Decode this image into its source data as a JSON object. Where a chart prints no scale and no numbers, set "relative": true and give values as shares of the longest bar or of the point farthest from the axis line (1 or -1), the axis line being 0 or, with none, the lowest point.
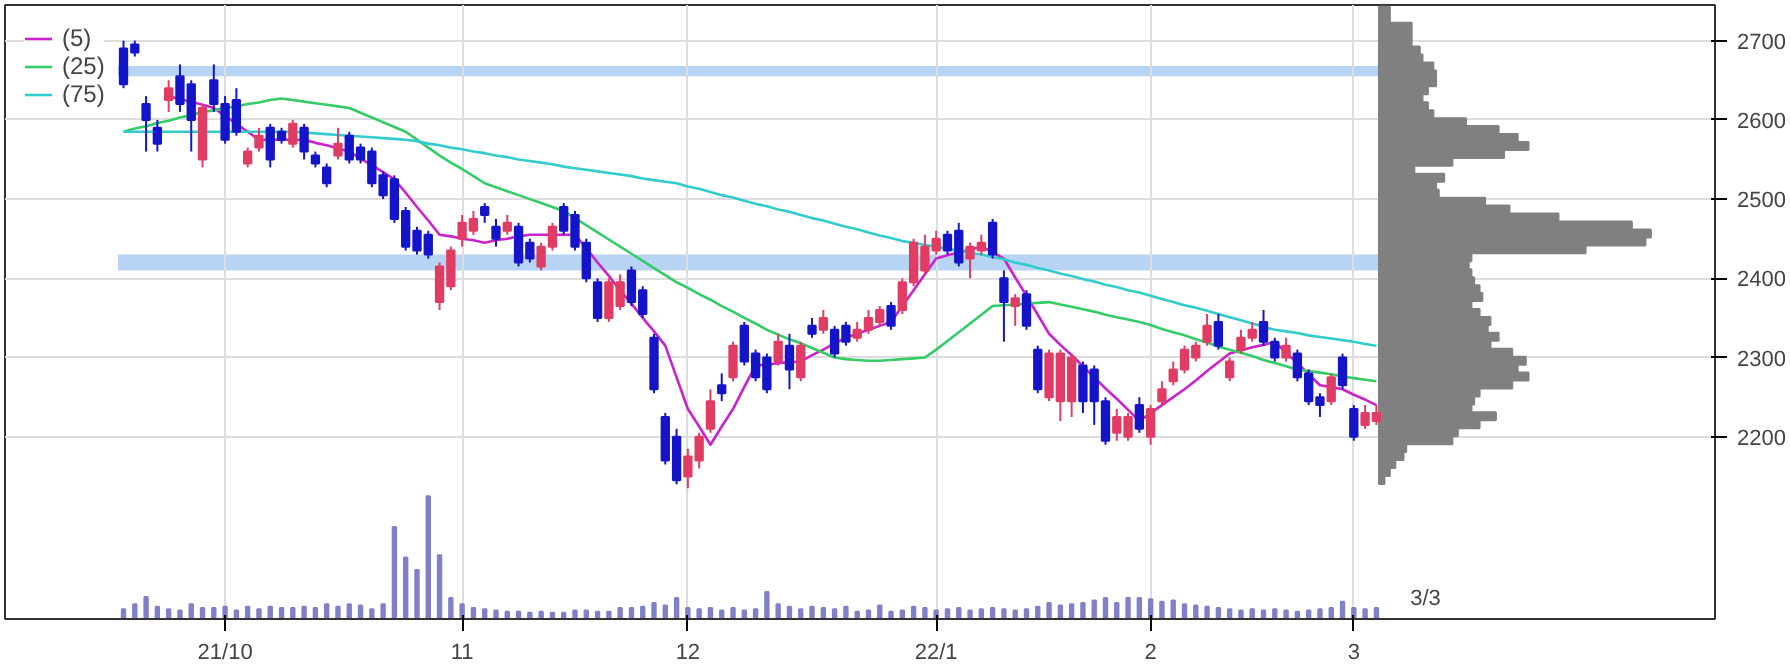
{
  "chart_data": [
    {
      "type": "candlestick",
      "categories": [
        null,
        null,
        null,
        null,
        null,
        null,
        null,
        null,
        null,
        "21/10",
        null,
        null,
        null,
        null,
        null,
        null,
        null,
        null,
        null,
        null,
        null,
        null,
        null,
        null,
        null,
        null,
        null,
        null,
        null,
        null,
        "11",
        null,
        null,
        null,
        null,
        null,
        null,
        null,
        null,
        null,
        null,
        null,
        null,
        null,
        null,
        null,
        null,
        null,
        null,
        null,
        "12",
        null,
        null,
        null,
        null,
        null,
        null,
        null,
        null,
        null,
        null,
        null,
        null,
        null,
        null,
        null,
        null,
        null,
        null,
        null,
        null,
        null,
        "22/1",
        null,
        null,
        null,
        null,
        null,
        null,
        null,
        null,
        null,
        null,
        null,
        null,
        null,
        null,
        null,
        null,
        null,
        null,
        "2",
        null,
        null,
        null,
        null,
        null,
        null,
        null,
        null,
        null,
        null,
        null,
        null,
        null,
        null,
        null,
        null,
        null,
        "3",
        null,
        null
      ],
      "ohlc": [
        [
          2690,
          2700,
          2640,
          2645
        ],
        [
          2695,
          2700,
          2680,
          2685
        ],
        [
          2620,
          2630,
          2560,
          2600
        ],
        [
          2590,
          2600,
          2560,
          2570
        ],
        [
          2625,
          2650,
          2610,
          2640
        ],
        [
          2655,
          2670,
          2610,
          2620
        ],
        [
          2645,
          2650,
          2560,
          2600
        ],
        [
          2550,
          2620,
          2540,
          2615
        ],
        [
          2650,
          2670,
          2610,
          2620
        ],
        [
          2620,
          2630,
          2570,
          2575
        ],
        [
          2625,
          2640,
          2580,
          2585
        ],
        [
          2545,
          2565,
          2540,
          2560
        ],
        [
          2565,
          2590,
          2560,
          2580
        ],
        [
          2590,
          2595,
          2540,
          2550
        ],
        [
          2585,
          2590,
          2570,
          2575
        ],
        [
          2570,
          2600,
          2565,
          2595
        ],
        [
          2590,
          2595,
          2550,
          2560
        ],
        [
          2555,
          2560,
          2540,
          2545
        ],
        [
          2540,
          2545,
          2515,
          2520
        ],
        [
          2555,
          2590,
          2550,
          2570
        ],
        [
          2580,
          2585,
          2545,
          2550
        ],
        [
          2565,
          2570,
          2545,
          2550
        ],
        [
          2560,
          2565,
          2515,
          2520
        ],
        [
          2530,
          2535,
          2500,
          2505
        ],
        [
          2525,
          2530,
          2470,
          2475
        ],
        [
          2485,
          2490,
          2435,
          2440
        ],
        [
          2460,
          2465,
          2430,
          2435
        ],
        [
          2455,
          2460,
          2425,
          2430
        ],
        [
          2370,
          2420,
          2360,
          2415
        ],
        [
          2390,
          2440,
          2385,
          2435
        ],
        [
          2450,
          2480,
          2440,
          2470
        ],
        [
          2460,
          2485,
          2455,
          2475
        ],
        [
          2490,
          2495,
          2470,
          2480
        ],
        [
          2465,
          2475,
          2440,
          2450
        ],
        [
          2460,
          2480,
          2455,
          2470
        ],
        [
          2465,
          2470,
          2415,
          2420
        ],
        [
          2445,
          2450,
          2420,
          2425
        ],
        [
          2415,
          2445,
          2410,
          2440
        ],
        [
          2440,
          2470,
          2435,
          2465
        ],
        [
          2490,
          2495,
          2455,
          2460
        ],
        [
          2480,
          2485,
          2435,
          2440
        ],
        [
          2445,
          2450,
          2395,
          2400
        ],
        [
          2395,
          2400,
          2345,
          2350
        ],
        [
          2350,
          2400,
          2345,
          2395
        ],
        [
          2365,
          2405,
          2360,
          2395
        ],
        [
          2410,
          2415,
          2365,
          2370
        ],
        [
          2385,
          2390,
          2350,
          2355
        ],
        [
          2325,
          2330,
          2255,
          2260
        ],
        [
          2225,
          2230,
          2165,
          2170
        ],
        [
          2200,
          2210,
          2140,
          2145
        ],
        [
          2150,
          2185,
          2135,
          2175
        ],
        [
          2170,
          2205,
          2160,
          2200
        ],
        [
          2210,
          2260,
          2205,
          2245
        ],
        [
          2265,
          2280,
          2245,
          2255
        ],
        [
          2275,
          2320,
          2270,
          2315
        ],
        [
          2340,
          2345,
          2290,
          2295
        ],
        [
          2305,
          2310,
          2270,
          2275
        ],
        [
          2300,
          2305,
          2255,
          2260
        ],
        [
          2295,
          2330,
          2290,
          2320
        ],
        [
          2315,
          2330,
          2260,
          2285
        ],
        [
          2275,
          2320,
          2270,
          2315
        ],
        [
          2340,
          2350,
          2325,
          2330
        ],
        [
          2335,
          2360,
          2330,
          2350
        ],
        [
          2335,
          2340,
          2300,
          2305
        ],
        [
          2340,
          2345,
          2315,
          2320
        ],
        [
          2325,
          2345,
          2320,
          2335
        ],
        [
          2335,
          2360,
          2330,
          2350
        ],
        [
          2345,
          2365,
          2340,
          2360
        ],
        [
          2365,
          2370,
          2335,
          2340
        ],
        [
          2360,
          2400,
          2355,
          2395
        ],
        [
          2395,
          2450,
          2390,
          2445
        ],
        [
          2410,
          2455,
          2405,
          2440
        ],
        [
          2435,
          2460,
          2430,
          2450
        ],
        [
          2455,
          2460,
          2430,
          2435
        ],
        [
          2460,
          2470,
          2415,
          2420
        ],
        [
          2425,
          2445,
          2400,
          2440
        ],
        [
          2435,
          2455,
          2430,
          2445
        ],
        [
          2470,
          2475,
          2425,
          2430
        ],
        [
          2400,
          2410,
          2320,
          2370
        ],
        [
          2365,
          2380,
          2340,
          2375
        ],
        [
          2380,
          2385,
          2335,
          2340
        ],
        [
          2310,
          2315,
          2255,
          2260
        ],
        [
          2250,
          2310,
          2245,
          2305
        ],
        [
          2245,
          2310,
          2220,
          2305
        ],
        [
          2245,
          2305,
          2225,
          2300
        ],
        [
          2290,
          2295,
          2230,
          2245
        ],
        [
          2285,
          2290,
          2215,
          2245
        ],
        [
          2245,
          2250,
          2190,
          2195
        ],
        [
          2205,
          2235,
          2195,
          2225
        ],
        [
          2200,
          2230,
          2195,
          2225
        ],
        [
          2240,
          2250,
          2205,
          2210
        ],
        [
          2200,
          2240,
          2190,
          2235
        ],
        [
          2245,
          2270,
          2240,
          2260
        ],
        [
          2270,
          2295,
          2265,
          2285
        ],
        [
          2285,
          2315,
          2280,
          2310
        ],
        [
          2300,
          2320,
          2295,
          2315
        ],
        [
          2320,
          2355,
          2315,
          2340
        ],
        [
          2345,
          2355,
          2310,
          2315
        ],
        [
          2275,
          2300,
          2270,
          2295
        ],
        [
          2310,
          2335,
          2305,
          2325
        ],
        [
          2325,
          2345,
          2320,
          2335
        ],
        [
          2345,
          2360,
          2315,
          2320
        ],
        [
          2320,
          2325,
          2295,
          2300
        ],
        [
          2300,
          2325,
          2295,
          2315
        ],
        [
          2305,
          2310,
          2270,
          2275
        ],
        [
          2280,
          2285,
          2240,
          2245
        ],
        [
          2250,
          2255,
          2225,
          2240
        ],
        [
          2245,
          2280,
          2240,
          2275
        ],
        [
          2300,
          2305,
          2260,
          2265
        ],
        [
          2235,
          2240,
          2195,
          2200
        ],
        [
          2215,
          2240,
          2210,
          2230
        ],
        [
          2220,
          2240,
          2215,
          2230
        ]
      ],
      "colors": [
        "#1414c8",
        "#1414c8",
        "#1414c8",
        "#1414c8",
        "#e03c64",
        "#1414c8",
        "#1414c8",
        "#e03c64",
        "#1414c8",
        "#1414c8",
        "#1414c8",
        "#e03c64",
        "#e03c64",
        "#1414c8",
        "#1414c8",
        "#e03c64",
        "#1414c8",
        "#1414c8",
        "#1414c8",
        "#e03c64",
        "#1414c8",
        "#1414c8",
        "#1414c8",
        "#1414c8",
        "#1414c8",
        "#1414c8",
        "#1414c8",
        "#1414c8",
        "#e03c64",
        "#e03c64",
        "#e03c64",
        "#e03c64",
        "#1414c8",
        "#1414c8",
        "#e03c64",
        "#1414c8",
        "#1414c8",
        "#e03c64",
        "#e03c64",
        "#1414c8",
        "#1414c8",
        "#1414c8",
        "#1414c8",
        "#e03c64",
        "#e03c64",
        "#1414c8",
        "#1414c8",
        "#1414c8",
        "#1414c8",
        "#1414c8",
        "#e03c64",
        "#e03c64",
        "#e03c64",
        "#1414c8",
        "#e03c64",
        "#1414c8",
        "#1414c8",
        "#1414c8",
        "#e03c64",
        "#1414c8",
        "#e03c64",
        "#1414c8",
        "#e03c64",
        "#1414c8",
        "#1414c8",
        "#e03c64",
        "#e03c64",
        "#e03c64",
        "#1414c8",
        "#e03c64",
        "#e03c64",
        "#e03c64",
        "#e03c64",
        "#1414c8",
        "#1414c8",
        "#e03c64",
        "#e03c64",
        "#1414c8",
        "#1414c8",
        "#e03c64",
        "#1414c8",
        "#1414c8",
        "#e03c64",
        "#e03c64",
        "#e03c64",
        "#1414c8",
        "#1414c8",
        "#1414c8",
        "#e03c64",
        "#e03c64",
        "#1414c8",
        "#e03c64",
        "#e03c64",
        "#e03c64",
        "#e03c64",
        "#e03c64",
        "#e03c64",
        "#1414c8",
        "#e03c64",
        "#e03c64",
        "#e03c64",
        "#1414c8",
        "#1414c8",
        "#e03c64",
        "#1414c8",
        "#1414c8",
        "#1414c8",
        "#e03c64",
        "#1414c8",
        "#1414c8",
        "#e03c64",
        "#e03c64"
      ],
      "series": [
        {
          "type": "line",
          "name": "(5)",
          "color": "#cc22cc",
          "values": [
            null,
            null,
            null,
            null,
            2630,
            2626,
            2623,
            2619,
            2615,
            2605,
            2595,
            2585,
            2575,
            2575,
            2575,
            2575,
            2575,
            2571,
            2568,
            2564,
            2560,
            2551,
            2543,
            2534,
            2525,
            2508,
            2490,
            2473,
            2455,
            2453,
            2450,
            2448,
            2445,
            2448,
            2450,
            2453,
            2455,
            2455,
            2455,
            2455,
            2455,
            2438,
            2420,
            2403,
            2385,
            2368,
            2350,
            2333,
            2315,
            2275,
            2235,
            2213,
            2190,
            2213,
            2235,
            2263,
            2290,
            2291,
            2293,
            2294,
            2295,
            2303,
            2310,
            2318,
            2325,
            2330,
            2335,
            2340,
            2345,
            2365,
            2385,
            2405,
            2425,
            2429,
            2433,
            2436,
            2440,
            2433,
            2425,
            2401,
            2378,
            2354,
            2330,
            2316,
            2303,
            2289,
            2275,
            2261,
            2248,
            2234,
            2220,
            2230,
            2240,
            2250,
            2260,
            2271,
            2283,
            2294,
            2305,
            2309,
            2313,
            2316,
            2320,
            2306,
            2293,
            2279,
            2265,
            2263,
            2260,
            2253,
            2247,
            2240
          ]
        },
        {
          "type": "line",
          "name": "(25)",
          "color": "#33cc66",
          "values": [
            2585,
            2589,
            2592,
            2596,
            2599,
            2603,
            2606,
            2610,
            2612,
            2615,
            2617,
            2620,
            2622,
            2625,
            2627,
            2625,
            2623,
            2621,
            2619,
            2617,
            2615,
            2609,
            2603,
            2597,
            2591,
            2585,
            2575,
            2565,
            2555,
            2546,
            2538,
            2529,
            2520,
            2515,
            2510,
            2505,
            2500,
            2495,
            2490,
            2485,
            2476,
            2467,
            2458,
            2449,
            2440,
            2431,
            2422,
            2413,
            2404,
            2395,
            2388,
            2380,
            2373,
            2365,
            2358,
            2350,
            2343,
            2335,
            2329,
            2323,
            2318,
            2312,
            2306,
            2300,
            2298,
            2297,
            2296,
            2296,
            2297,
            2298,
            2299,
            2300,
            2310,
            2321,
            2332,
            2343,
            2354,
            2365,
            2366,
            2367,
            2368,
            2369,
            2370,
            2367,
            2364,
            2361,
            2358,
            2354,
            2351,
            2348,
            2345,
            2341,
            2336,
            2332,
            2328,
            2323,
            2319,
            2314,
            2310,
            2306,
            2302,
            2297,
            2293,
            2289,
            2285,
            2283,
            2281,
            2279,
            2276,
            2274,
            2272,
            2270
          ]
        },
        {
          "type": "line",
          "name": "(75)",
          "color": "#33cccc",
          "values": [
            2585,
            2585,
            2585,
            2585,
            2585,
            2585,
            2585,
            2585,
            2585,
            2585,
            2585,
            2585,
            2585,
            2585,
            2585,
            2585,
            2584,
            2583,
            2582,
            2581,
            2580,
            2579,
            2578,
            2577,
            2576,
            2575,
            2573,
            2570,
            2568,
            2565,
            2563,
            2560,
            2558,
            2555,
            2553,
            2550,
            2548,
            2546,
            2544,
            2541,
            2539,
            2537,
            2535,
            2533,
            2531,
            2529,
            2526,
            2524,
            2522,
            2520,
            2516,
            2513,
            2509,
            2505,
            2502,
            2498,
            2494,
            2491,
            2487,
            2484,
            2480,
            2476,
            2473,
            2469,
            2465,
            2462,
            2458,
            2454,
            2451,
            2447,
            2445,
            2442,
            2440,
            2437,
            2435,
            2432,
            2430,
            2427,
            2424,
            2420,
            2417,
            2413,
            2410,
            2406,
            2403,
            2399,
            2396,
            2392,
            2389,
            2385,
            2382,
            2378,
            2374,
            2370,
            2366,
            2363,
            2359,
            2355,
            2351,
            2347,
            2343,
            2339,
            2335,
            2333,
            2331,
            2328,
            2326,
            2324,
            2322,
            2320,
            2317,
            2315
          ]
        }
      ],
      "bands": [
        {
          "axis": "y",
          "from": 2655,
          "to": 2668,
          "color": "#b8d4f4"
        },
        {
          "axis": "y",
          "from": 2410,
          "to": 2430,
          "color": "#b8d4f4"
        }
      ],
      "ylim": [
        1970,
        2745
      ],
      "yticks": [
        2200,
        2300,
        2400,
        2500,
        2600,
        2700
      ],
      "grid": true,
      "legend": "top left",
      "annotations": [
        "3/3"
      ]
    },
    {
      "type": "bar",
      "relative": true,
      "color": "#8080c8",
      "categories": [
        null,
        null,
        null,
        null,
        null,
        null,
        null,
        null,
        null,
        null,
        null,
        null,
        null,
        null,
        null,
        null,
        null,
        null,
        null,
        null,
        null,
        null,
        null,
        null,
        null,
        null,
        null,
        null,
        null,
        null,
        null,
        null,
        null,
        null,
        null,
        null,
        null,
        null,
        null,
        null,
        null,
        null,
        null,
        null,
        null,
        null,
        null,
        null,
        null,
        null,
        null,
        null,
        null,
        null,
        null,
        null,
        null,
        null,
        null,
        null,
        null,
        null,
        null,
        null,
        null,
        null,
        null,
        null,
        null,
        null,
        null,
        null,
        null,
        null,
        null,
        null,
        null,
        null,
        null,
        null,
        null,
        null,
        null,
        null,
        null,
        null,
        null,
        null,
        null,
        null,
        null,
        null,
        null,
        null,
        null,
        null,
        null,
        null,
        null,
        null,
        null,
        null,
        null,
        null,
        null,
        null,
        null,
        null,
        null,
        null,
        null,
        null
      ],
      "values": [
        0.08,
        0.12,
        0.18,
        0.1,
        0.08,
        0.07,
        0.12,
        0.09,
        0.09,
        0.1,
        0.07,
        0.1,
        0.08,
        0.1,
        0.09,
        0.09,
        0.1,
        0.09,
        0.12,
        0.1,
        0.12,
        0.11,
        0.08,
        0.12,
        0.75,
        0.5,
        0.4,
        1.0,
        0.52,
        0.17,
        0.12,
        0.09,
        0.08,
        0.07,
        0.06,
        0.06,
        0.05,
        0.06,
        0.05,
        0.05,
        0.07,
        0.07,
        0.06,
        0.06,
        0.09,
        0.09,
        0.1,
        0.13,
        0.11,
        0.17,
        0.09,
        0.08,
        0.09,
        0.07,
        0.09,
        0.07,
        0.08,
        0.22,
        0.12,
        0.1,
        0.08,
        0.1,
        0.09,
        0.08,
        0.1,
        0.06,
        0.07,
        0.11,
        0.06,
        0.07,
        0.1,
        0.09,
        0.07,
        0.08,
        0.09,
        0.07,
        0.08,
        0.09,
        0.08,
        0.07,
        0.08,
        0.1,
        0.13,
        0.11,
        0.12,
        0.13,
        0.15,
        0.17,
        0.13,
        0.17,
        0.17,
        0.16,
        0.14,
        0.15,
        0.12,
        0.11,
        0.1,
        0.09,
        0.08,
        0.07,
        0.08,
        0.07,
        0.08,
        0.07,
        0.06,
        0.07,
        0.08,
        0.09,
        0.14,
        0.09,
        0.08,
        0.09
      ]
    },
    {
      "type": "bar",
      "orientation": "horizontal",
      "relative": true,
      "color": "#808080",
      "categories": [
        null,
        null,
        null,
        null,
        null,
        null,
        null,
        null,
        null,
        null,
        null,
        null,
        null,
        null,
        null,
        null,
        null,
        null,
        null,
        null,
        null,
        null,
        null,
        null,
        null,
        null,
        null,
        null,
        null,
        null,
        null,
        null,
        null,
        null,
        null,
        null,
        null,
        null,
        null,
        null,
        null,
        null,
        null,
        null,
        null,
        null,
        null,
        null,
        null,
        null,
        null,
        null,
        null,
        null,
        null,
        null,
        null,
        null,
        null,
        null
      ],
      "values": [
        0.04,
        0.04,
        0.12,
        0.12,
        0.12,
        0.15,
        0.16,
        0.2,
        0.21,
        0.21,
        0.18,
        0.16,
        0.18,
        0.2,
        0.32,
        0.44,
        0.51,
        0.55,
        0.46,
        0.27,
        0.13,
        0.24,
        0.21,
        0.22,
        0.39,
        0.48,
        0.66,
        0.93,
        1.0,
        0.98,
        0.76,
        0.34,
        0.33,
        0.34,
        0.35,
        0.37,
        0.38,
        0.34,
        0.37,
        0.41,
        0.4,
        0.44,
        0.41,
        0.49,
        0.54,
        0.51,
        0.55,
        0.49,
        0.37,
        0.35,
        0.34,
        0.43,
        0.37,
        0.29,
        0.27,
        0.1,
        0.09,
        0.06,
        0.04,
        0.02
      ]
    }
  ]
}
